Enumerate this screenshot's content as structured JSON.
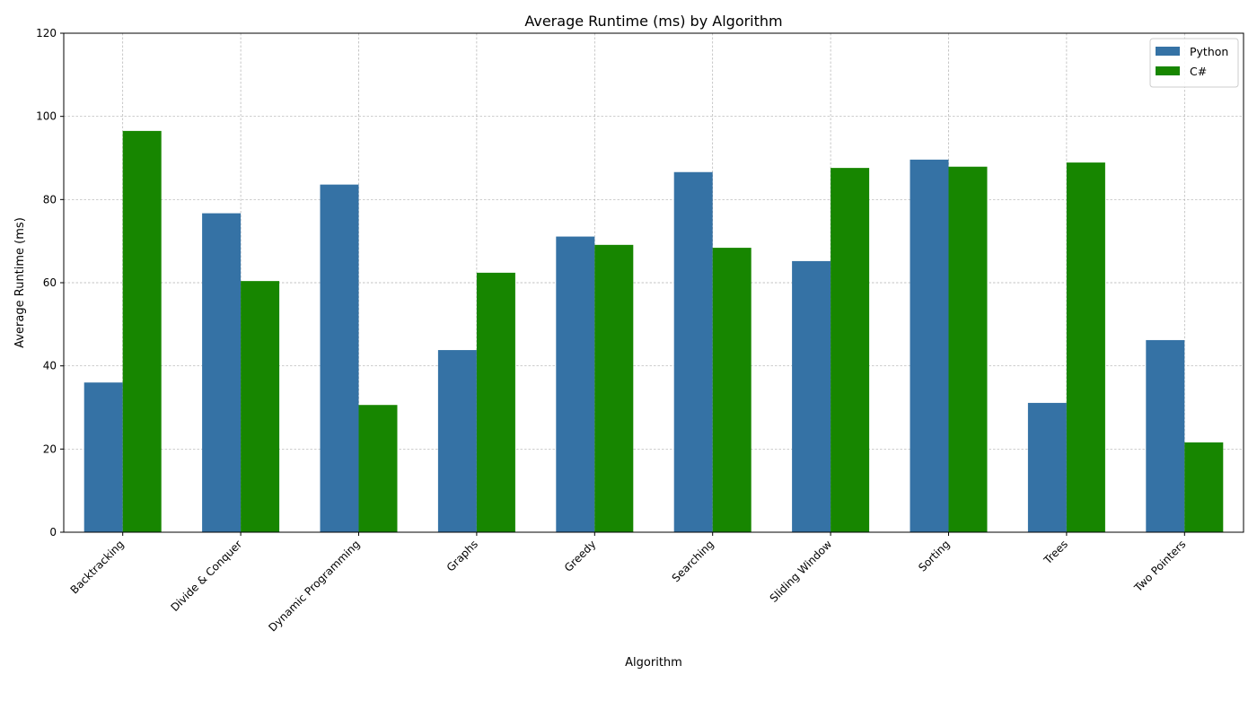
{
  "chart_data": {
    "type": "bar",
    "title": "Average Runtime (ms) by Algorithm",
    "xlabel": "Algorithm",
    "ylabel": "Average Runtime (ms)",
    "ylim": [
      0,
      120
    ],
    "yticks": [
      0,
      20,
      40,
      60,
      80,
      100,
      120
    ],
    "grid": true,
    "legend_position": "top-right",
    "categories": [
      "Backtracking",
      "Divide & Conquer",
      "Dynamic Programming",
      "Graphs",
      "Greedy",
      "Searching",
      "Sliding Window",
      "Sorting",
      "Trees",
      "Two Pointers"
    ],
    "series": [
      {
        "name": "Python",
        "color": "#3572a5",
        "values": [
          36.0,
          76.7,
          83.6,
          43.8,
          71.1,
          86.6,
          65.2,
          89.6,
          31.1,
          46.2
        ]
      },
      {
        "name": "C#",
        "color": "#178600",
        "values": [
          96.5,
          60.4,
          30.6,
          62.4,
          69.1,
          68.4,
          87.6,
          87.9,
          88.9,
          21.6
        ]
      }
    ]
  }
}
